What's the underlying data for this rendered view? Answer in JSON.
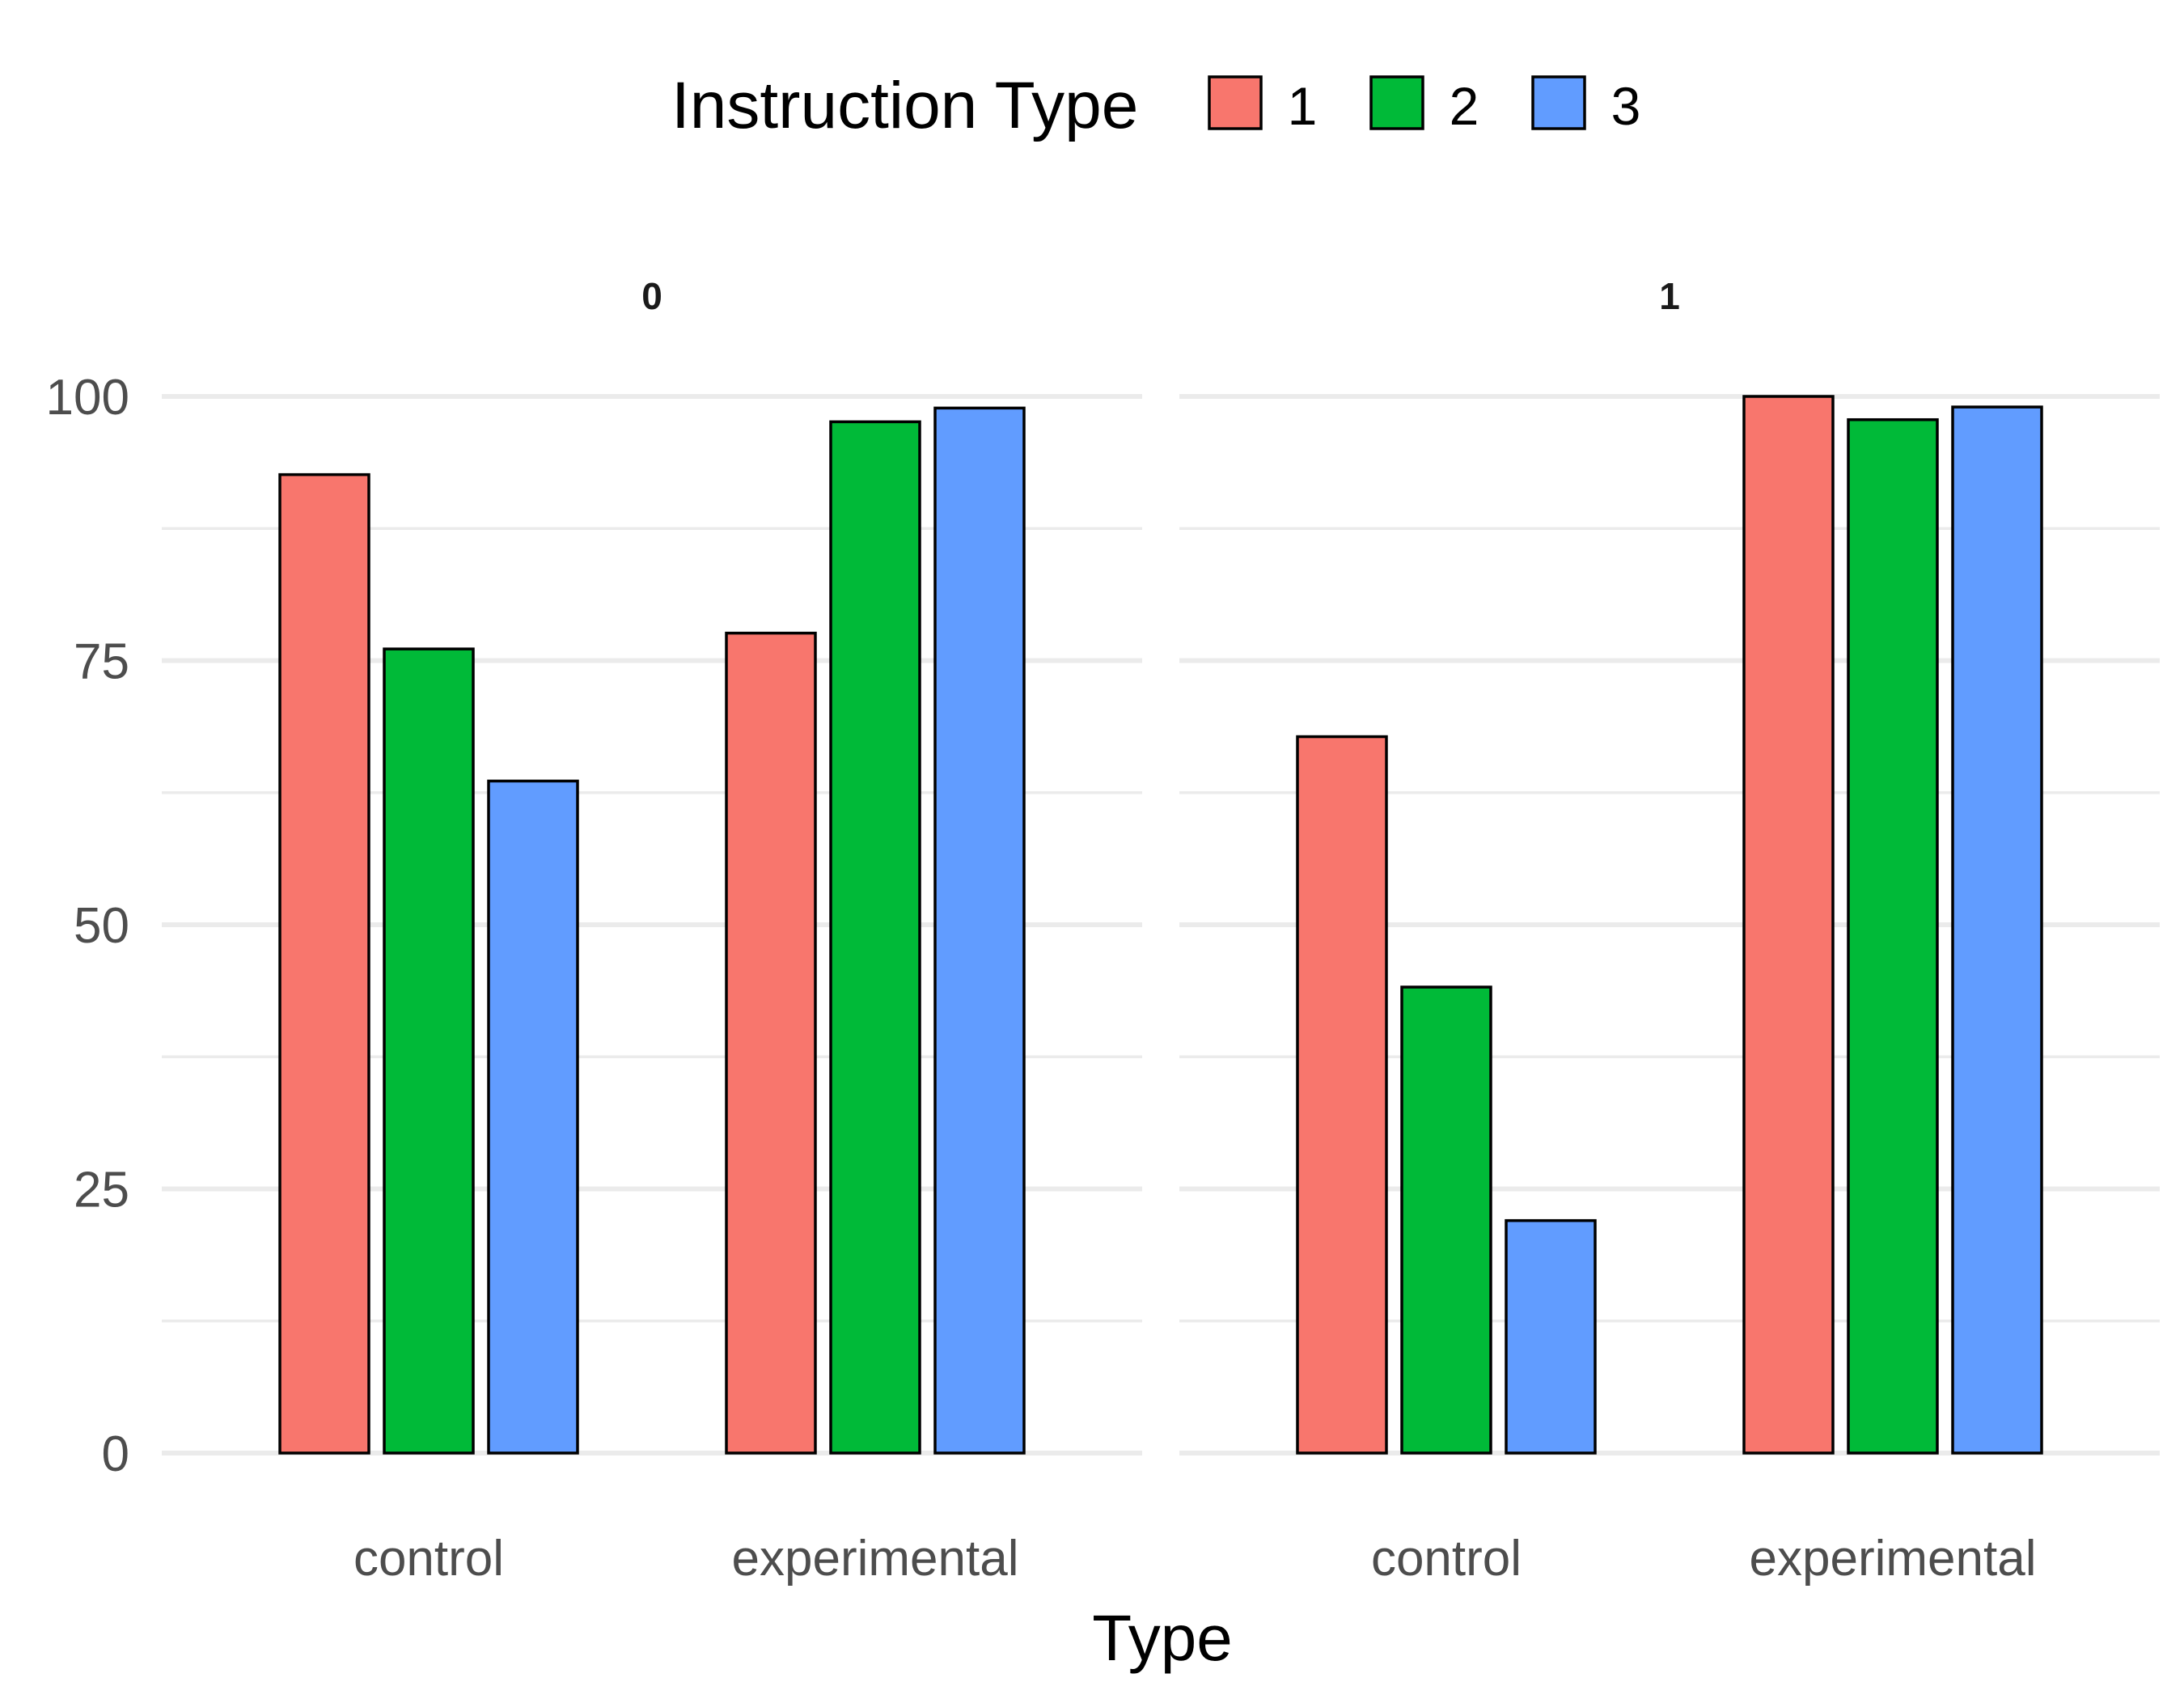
{
  "chart_data": {
    "type": "bar",
    "facet_labels": [
      "0",
      "1"
    ],
    "categories": [
      "control",
      "experimental"
    ],
    "xlabel": "Type",
    "ylabel": "",
    "ylim": [
      0,
      100
    ],
    "yticks": [
      0,
      25,
      50,
      75,
      100
    ],
    "grid": true,
    "legend": {
      "title": "Instruction Type",
      "position": "top",
      "entries": [
        "1",
        "2",
        "3"
      ]
    },
    "series": [
      {
        "name": "1",
        "color": "#F8766D"
      },
      {
        "name": "2",
        "color": "#00BA38"
      },
      {
        "name": "3",
        "color": "#619CFF"
      }
    ],
    "facets": [
      {
        "label": "0",
        "values": {
          "control": [
            92.6,
            76.1,
            63.6
          ],
          "experimental": [
            77.6,
            97.6,
            98.9
          ]
        }
      },
      {
        "label": "1",
        "values": {
          "control": [
            67.8,
            44.1,
            22.0
          ],
          "experimental": [
            100.0,
            97.8,
            99.0
          ]
        }
      }
    ]
  }
}
